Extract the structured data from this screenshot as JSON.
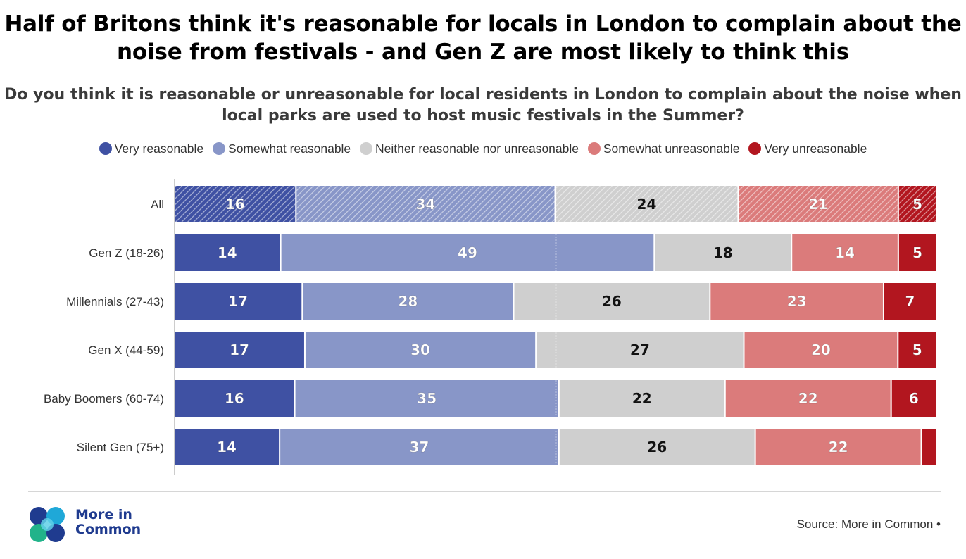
{
  "title": "Half of Britons think it's reasonable for locals in London to complain about the noise from festivals - and Gen Z are most likely to think this",
  "chart_data": {
    "type": "bar",
    "orientation": "horizontal",
    "stacked": true,
    "subtitle": "Do you think it is reasonable or unreasonable for local residents in London to complain about the noise when local parks are used to host music festivals in the Summer?",
    "categories": [
      "All",
      "Gen Z (18-26)",
      "Millennials (27-43)",
      "Gen X (44-59)",
      "Baby Boomers (60-74)",
      "Silent Gen (75+)"
    ],
    "series": [
      {
        "name": "Very reasonable",
        "color": "#3f51a3",
        "values": [
          16,
          14,
          17,
          17,
          16,
          14
        ]
      },
      {
        "name": "Somewhat reasonable",
        "color": "#8896c8",
        "values": [
          34,
          49,
          28,
          30,
          35,
          37
        ]
      },
      {
        "name": "Neither reasonable nor unreasonable",
        "color": "#cfcfcf",
        "values": [
          24,
          18,
          26,
          27,
          22,
          26
        ]
      },
      {
        "name": "Somewhat unreasonable",
        "color": "#db7b7b",
        "values": [
          21,
          14,
          23,
          20,
          22,
          22
        ]
      },
      {
        "name": "Very unreasonable",
        "color": "#b2161f",
        "values": [
          5,
          5,
          7,
          5,
          6,
          2
        ]
      }
    ],
    "value_labels": [
      [
        "16",
        "34",
        "24",
        "21",
        "5"
      ],
      [
        "14",
        "49",
        "18",
        "14",
        "5"
      ],
      [
        "17",
        "28",
        "26",
        "23",
        "7"
      ],
      [
        "17",
        "30",
        "27",
        "20",
        "5"
      ],
      [
        "16",
        "35",
        "22",
        "22",
        "6"
      ],
      [
        "14",
        "37",
        "26",
        "22",
        ""
      ]
    ],
    "hatched_rows": [
      "All"
    ],
    "xlim": [
      0,
      100
    ],
    "legend": "top-center",
    "grid": false
  },
  "logo": {
    "text": "More in Common",
    "line1": "More in",
    "line2": "Common"
  },
  "source": "Source: More in Common •"
}
